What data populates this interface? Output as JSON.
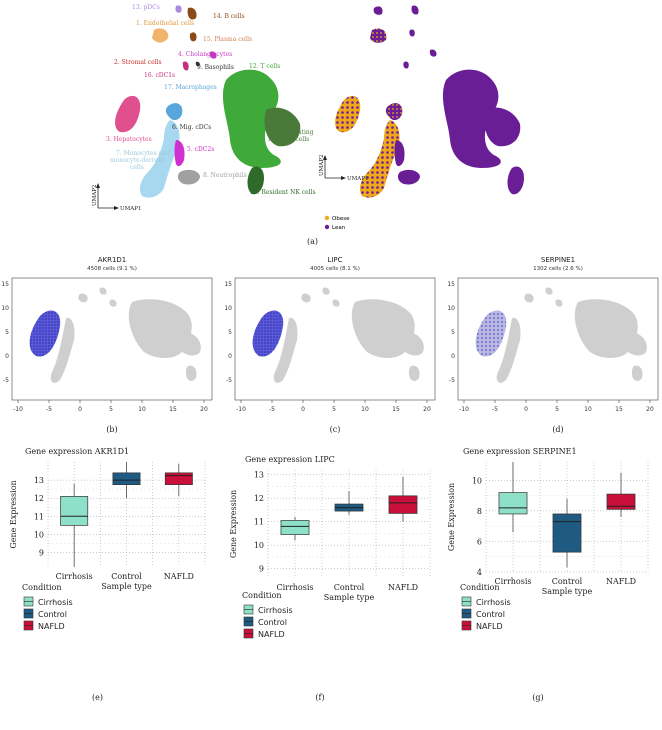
{
  "colors": {
    "obese": "#f0a81a",
    "lean": "#6a1e96",
    "grey_cells": "#cfcfcf",
    "blue_expr": "#3a3ac8",
    "cirrhosis": "#8fe0c8",
    "control": "#1e5a82",
    "nafld": "#c8103a"
  },
  "panel_a": {
    "label": "(a)",
    "axis_y": "UMAP2",
    "axis_x": "UMAP1",
    "clusters": [
      {
        "name": "13. pDCs",
        "color": "#a98be0"
      },
      {
        "name": "1. Endothelial cells",
        "color": "#f2b36b"
      },
      {
        "name": "14. B cells",
        "color": "#8b4a1a"
      },
      {
        "name": "15. Plasma cells",
        "color": "#e0a070"
      },
      {
        "name": "4. Cholangiocytes",
        "color": "#c637c6"
      },
      {
        "name": "2. Stromal cells",
        "color": "#c82a2a"
      },
      {
        "name": "9. Basophils",
        "color": "#333333"
      },
      {
        "name": "12. T cells",
        "color": "#3faa3a"
      },
      {
        "name": "16. cDC1s",
        "color": "#c5307a"
      },
      {
        "name": "17. Macrophages",
        "color": "#58a6dc"
      },
      {
        "name": "3. Hepatocytes",
        "color": "#e0508f"
      },
      {
        "name": "6. Mig. cDCs",
        "color": "#333333"
      },
      {
        "name": "11. Circulating NK/NKT cells",
        "color": "#4a7a3a"
      },
      {
        "name": "5. cDC2s",
        "color": "#d030d0"
      },
      {
        "name": "7. Monocytes and monocyte-derived cells",
        "color": "#a8d8f0"
      },
      {
        "name": "8. Neutrophils",
        "color": "#a0a0a0"
      },
      {
        "name": "10. Resident NK cells",
        "color": "#2e6a2a"
      }
    ],
    "legend": [
      "Obese",
      "Lean"
    ]
  },
  "gene_panels": [
    {
      "label": "(b)",
      "gene": "AKR1D1",
      "cells": "4508 cells (9.1 %)"
    },
    {
      "label": "(c)",
      "gene": "LIPC",
      "cells": "4005 cells (8.1 %)"
    },
    {
      "label": "(d)",
      "gene": "SERPINE1",
      "cells": "1302 cells (2.6 %)"
    }
  ],
  "scatter_x_ticks": [
    "-10",
    "-5",
    "0",
    "5",
    "10",
    "15",
    "20"
  ],
  "scatter_y_ticks": [
    "15",
    "10",
    "5",
    "0",
    "-5"
  ],
  "chart_data": [
    {
      "type": "box",
      "label": "(e)",
      "title": "Gene expression AKR1D1",
      "xlabel": "Sample type",
      "ylabel": "Gene Expression",
      "categories": [
        "Cirrhosis",
        "Control",
        "NAFLD"
      ],
      "ylim": [
        8.2,
        14
      ],
      "yticks": [
        9,
        10,
        11,
        12,
        13
      ],
      "boxes": [
        {
          "min": 8.2,
          "q1": 10.5,
          "median": 11.0,
          "q3": 12.1,
          "max": 12.8
        },
        {
          "min": 12.0,
          "q1": 12.75,
          "median": 13.0,
          "q3": 13.4,
          "max": 14.0
        },
        {
          "min": 12.1,
          "q1": 12.75,
          "median": 13.25,
          "q3": 13.4,
          "max": 13.9
        }
      ],
      "legend_title": "Condition",
      "legend": [
        "Cirrhosis",
        "Control",
        "NAFLD"
      ]
    },
    {
      "type": "box",
      "label": "(f)",
      "title": "Gene expression LIPC",
      "xlabel": "Sample type",
      "ylabel": "Gene Expression",
      "categories": [
        "Cirrhosis",
        "Control",
        "NAFLD"
      ],
      "ylim": [
        8.6,
        13.2
      ],
      "yticks": [
        9,
        10,
        11,
        12,
        13
      ],
      "boxes": [
        {
          "min": 10.2,
          "q1": 10.45,
          "median": 10.8,
          "q3": 11.05,
          "max": 11.2
        },
        {
          "min": 11.3,
          "q1": 11.45,
          "median": 11.6,
          "q3": 11.75,
          "max": 12.3
        },
        {
          "min": 11.0,
          "q1": 11.35,
          "median": 11.8,
          "q3": 12.1,
          "max": 12.9
        }
      ],
      "legend_title": "Condition",
      "legend": [
        "Cirrhosis",
        "Control",
        "NAFLD"
      ]
    },
    {
      "type": "box",
      "label": "(g)",
      "title": "Gene expression SERPINE1",
      "xlabel": "Sample type",
      "ylabel": "Gene Expression",
      "categories": [
        "Cirrhosis",
        "Control",
        "NAFLD"
      ],
      "ylim": [
        4,
        11.2
      ],
      "yticks": [
        4,
        6,
        8,
        10
      ],
      "boxes": [
        {
          "min": 6.6,
          "q1": 7.8,
          "median": 8.2,
          "q3": 9.2,
          "max": 11.2
        },
        {
          "min": 4.3,
          "q1": 5.3,
          "median": 7.3,
          "q3": 7.8,
          "max": 8.8
        },
        {
          "min": 7.6,
          "q1": 8.1,
          "median": 8.3,
          "q3": 9.1,
          "max": 10.5
        }
      ],
      "legend_title": "Condition",
      "legend": [
        "Cirrhosis",
        "Control",
        "NAFLD"
      ]
    }
  ]
}
